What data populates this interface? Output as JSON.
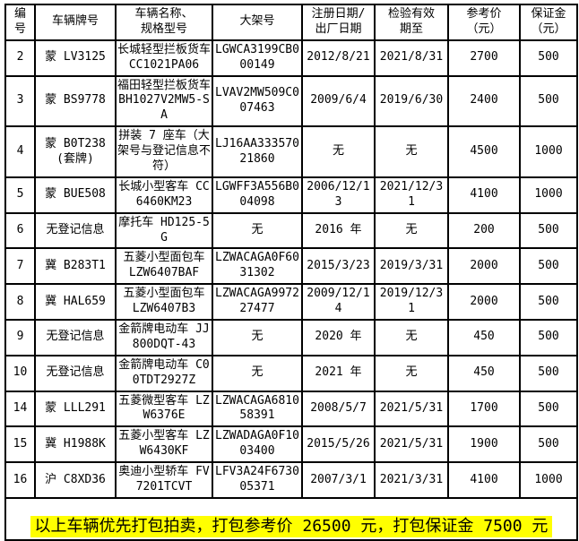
{
  "table": {
    "headers": [
      "编\n号",
      "车辆牌号",
      "车辆名称、\n规格型号",
      "大架号",
      "注册日期/\n出厂日期",
      "检验有效\n期至",
      "参考价\n（元）",
      "保证金\n（元）"
    ],
    "rows": [
      {
        "no": "2",
        "plate": "蒙 LV3125",
        "name": "长城轻型拦板货车 CC1021PA06",
        "vin": "LGWCA3199CB000149",
        "reg_date": "2012/8/21",
        "valid_until": "2021/8/31",
        "price": "2700",
        "deposit": "500"
      },
      {
        "no": "3",
        "plate": "蒙 BS9778",
        "name": "福田轻型拦板货车 BH1027V2MW5-SA",
        "vin": "LVAV2MW509C007463",
        "reg_date": "2009/6/4",
        "valid_until": "2019/6/30",
        "price": "2400",
        "deposit": "500"
      },
      {
        "no": "4",
        "plate": "蒙 B0T238(套牌)",
        "name": "拼装 7 座车（大架号与登记信息不符）",
        "vin": "LJ16AA33357021860",
        "reg_date": "无",
        "valid_until": "无",
        "price": "4500",
        "deposit": "1000"
      },
      {
        "no": "5",
        "plate": "蒙 BUE508",
        "name": "长城小型客车 CC6460KM23",
        "vin": "LGWFF3A556B004098",
        "reg_date": "2006/12/13",
        "valid_until": "2021/12/31",
        "price": "4100",
        "deposit": "1000"
      },
      {
        "no": "6",
        "plate": "无登记信息",
        "name": "摩托车 HD125-5G",
        "vin": "无",
        "reg_date": "2016 年",
        "valid_until": "无",
        "price": "200",
        "deposit": "500"
      },
      {
        "no": "7",
        "plate": "冀 B283T1",
        "name": "五菱小型面包车 LZW6407BAF",
        "vin": "LZWACAGA0F6031302",
        "reg_date": "2015/3/23",
        "valid_until": "2019/3/31",
        "price": "2000",
        "deposit": "500"
      },
      {
        "no": "8",
        "plate": "冀 HAL659",
        "name": "五菱小型面包车 LZW6407B3",
        "vin": "LZWACAGA997227477",
        "reg_date": "2009/12/14",
        "valid_until": "2019/12/31",
        "price": "2000",
        "deposit": "500"
      },
      {
        "no": "9",
        "plate": "无登记信息",
        "name": "金箭牌电动车 JJ800DQT-43",
        "vin": "无",
        "reg_date": "2020 年",
        "valid_until": "无",
        "price": "450",
        "deposit": "500"
      },
      {
        "no": "10",
        "plate": "无登记信息",
        "name": "金箭牌电动车 C00TDT2927Z",
        "vin": "无",
        "reg_date": "2021 年",
        "valid_until": "无",
        "price": "450",
        "deposit": "500"
      },
      {
        "no": "14",
        "plate": "蒙 LLL291",
        "name": "五菱微型客车 LZW6376E",
        "vin": "LZWACAGA681058391",
        "reg_date": "2008/5/7",
        "valid_until": "2021/5/31",
        "price": "1700",
        "deposit": "500"
      },
      {
        "no": "15",
        "plate": "冀 H1988K",
        "name": "五菱小型客车 LZW6430KF",
        "vin": "LZWADAGA0F1003400",
        "reg_date": "2015/5/26",
        "valid_until": "2021/5/31",
        "price": "1900",
        "deposit": "500"
      },
      {
        "no": "16",
        "plate": "沪 C8XD36",
        "name": "奥迪小型轿车 FV7201TCVT",
        "vin": "LFV3A24F673005371",
        "reg_date": "2007/3/1",
        "valid_until": "2021/3/31",
        "price": "4100",
        "deposit": "1000"
      }
    ],
    "footer_note": "以上车辆优先打包拍卖，打包参考价 26500 元，打包保证金 7500 元",
    "footer_highlight_color": "#ffff00",
    "border_color": "#000000"
  }
}
